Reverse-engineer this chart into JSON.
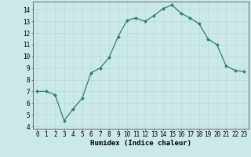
{
  "xlabel": "Humidex (Indice chaleur)",
  "x": [
    0,
    1,
    2,
    3,
    4,
    5,
    6,
    7,
    8,
    9,
    10,
    11,
    12,
    13,
    14,
    15,
    16,
    17,
    18,
    19,
    20,
    21,
    22,
    23
  ],
  "y": [
    7.0,
    7.0,
    6.7,
    4.5,
    5.5,
    6.4,
    8.6,
    9.0,
    9.9,
    11.7,
    13.1,
    13.3,
    13.0,
    13.5,
    14.1,
    14.4,
    13.7,
    13.3,
    12.8,
    11.5,
    11.0,
    9.2,
    8.8,
    8.7
  ],
  "line_color": "#2e7d6e",
  "marker": "D",
  "marker_size": 2.0,
  "background_color": "#cce9e9",
  "grid_color": "#b8d8d8",
  "ylim": [
    3.8,
    14.7
  ],
  "yticks": [
    4,
    5,
    6,
    7,
    8,
    9,
    10,
    11,
    12,
    13,
    14
  ],
  "xlim": [
    -0.5,
    23.5
  ],
  "tick_fontsize": 5.5,
  "xlabel_fontsize": 6.5,
  "linewidth": 0.9
}
